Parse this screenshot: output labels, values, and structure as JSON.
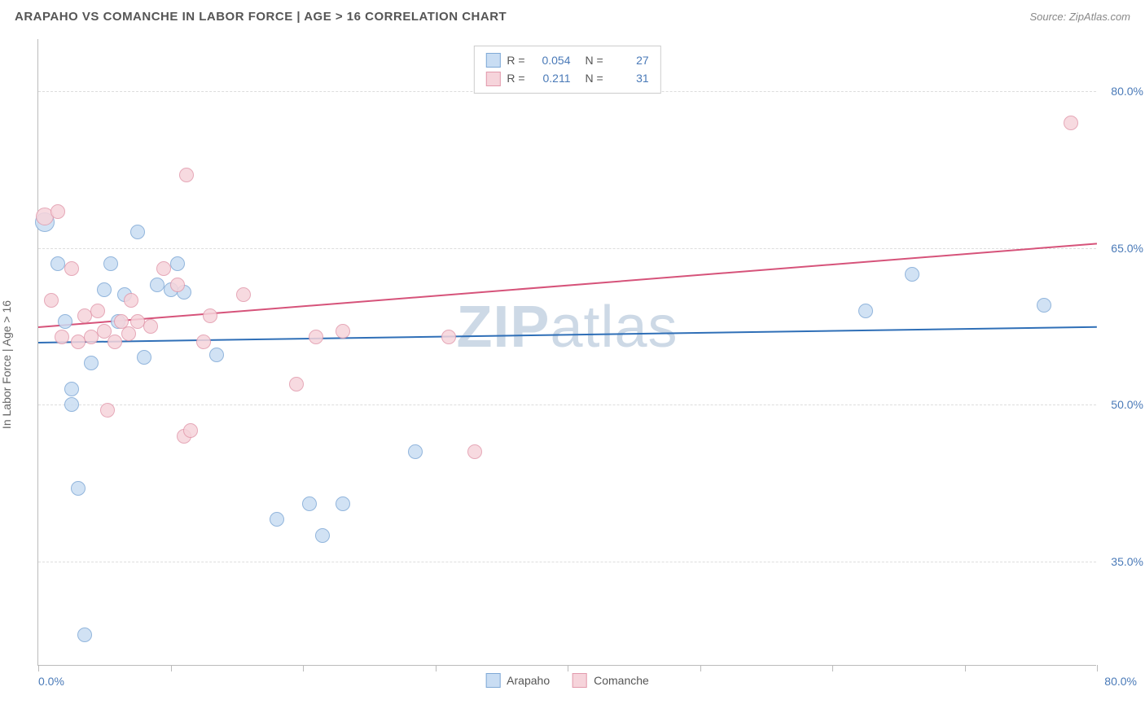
{
  "title": "ARAPAHO VS COMANCHE IN LABOR FORCE | AGE > 16 CORRELATION CHART",
  "source_label": "Source: ZipAtlas.com",
  "watermark": {
    "bold": "ZIP",
    "light": "atlas"
  },
  "chart": {
    "type": "scatter",
    "ylabel": "In Labor Force | Age > 16",
    "xlim": [
      0,
      80
    ],
    "ylim": [
      25,
      85
    ],
    "yticks": [
      35,
      50,
      65,
      80
    ],
    "ytick_labels": [
      "35.0%",
      "50.0%",
      "65.0%",
      "80.0%"
    ],
    "xticks": [
      0,
      10,
      20,
      30,
      40,
      50,
      60,
      70,
      80
    ],
    "xmin_label": "0.0%",
    "xmax_label": "80.0%",
    "background_color": "#ffffff",
    "grid_color": "#dddddd",
    "axis_color": "#bbbbbb",
    "tick_label_color": "#4a7ab8",
    "marker_radius": 9,
    "marker_border_width": 1,
    "series": [
      {
        "name": "Arapaho",
        "fill": "#c9ddf3",
        "stroke": "#7fa9d6",
        "trend_color": "#2f6fb7",
        "R": "0.054",
        "N": "27",
        "trend": {
          "x1": 0,
          "y1": 56.0,
          "x2": 80,
          "y2": 57.5
        },
        "points": [
          {
            "x": 0.5,
            "y": 67.5,
            "r": 12
          },
          {
            "x": 1.5,
            "y": 63.5
          },
          {
            "x": 2.0,
            "y": 58.0
          },
          {
            "x": 2.5,
            "y": 51.5
          },
          {
            "x": 2.5,
            "y": 50.0
          },
          {
            "x": 3.0,
            "y": 42.0
          },
          {
            "x": 3.5,
            "y": 28.0
          },
          {
            "x": 4.0,
            "y": 54.0
          },
          {
            "x": 5.0,
            "y": 61.0
          },
          {
            "x": 5.5,
            "y": 63.5
          },
          {
            "x": 6.0,
            "y": 58.0
          },
          {
            "x": 6.5,
            "y": 60.5
          },
          {
            "x": 7.5,
            "y": 66.5
          },
          {
            "x": 8.0,
            "y": 54.5
          },
          {
            "x": 9.0,
            "y": 61.5
          },
          {
            "x": 10.0,
            "y": 61.0
          },
          {
            "x": 10.5,
            "y": 63.5
          },
          {
            "x": 11.0,
            "y": 60.8
          },
          {
            "x": 13.5,
            "y": 54.8
          },
          {
            "x": 18.0,
            "y": 39.0
          },
          {
            "x": 20.5,
            "y": 40.5
          },
          {
            "x": 21.5,
            "y": 37.5
          },
          {
            "x": 23.0,
            "y": 40.5
          },
          {
            "x": 28.5,
            "y": 45.5
          },
          {
            "x": 62.5,
            "y": 59.0
          },
          {
            "x": 66.0,
            "y": 62.5
          },
          {
            "x": 76.0,
            "y": 59.5
          }
        ]
      },
      {
        "name": "Comanche",
        "fill": "#f6d4db",
        "stroke": "#e29aac",
        "trend_color": "#d6537a",
        "R": "0.211",
        "N": "31",
        "trend": {
          "x1": 0,
          "y1": 57.5,
          "x2": 80,
          "y2": 65.5
        },
        "points": [
          {
            "x": 0.5,
            "y": 68.0,
            "r": 11
          },
          {
            "x": 1.0,
            "y": 60.0
          },
          {
            "x": 1.5,
            "y": 68.5
          },
          {
            "x": 1.8,
            "y": 56.5
          },
          {
            "x": 2.5,
            "y": 63.0
          },
          {
            "x": 3.0,
            "y": 56.0
          },
          {
            "x": 3.5,
            "y": 58.5
          },
          {
            "x": 4.0,
            "y": 56.5
          },
          {
            "x": 4.5,
            "y": 59.0
          },
          {
            "x": 5.0,
            "y": 57.0
          },
          {
            "x": 5.2,
            "y": 49.5
          },
          {
            "x": 5.8,
            "y": 56.0
          },
          {
            "x": 6.3,
            "y": 58.0
          },
          {
            "x": 6.8,
            "y": 56.8
          },
          {
            "x": 7.0,
            "y": 60.0
          },
          {
            "x": 7.5,
            "y": 58.0
          },
          {
            "x": 8.5,
            "y": 57.5
          },
          {
            "x": 9.5,
            "y": 63.0
          },
          {
            "x": 10.5,
            "y": 61.5
          },
          {
            "x": 11.0,
            "y": 47.0
          },
          {
            "x": 11.2,
            "y": 72.0
          },
          {
            "x": 11.5,
            "y": 47.5
          },
          {
            "x": 12.5,
            "y": 56.0
          },
          {
            "x": 13.0,
            "y": 58.5
          },
          {
            "x": 15.5,
            "y": 60.5
          },
          {
            "x": 19.5,
            "y": 52.0
          },
          {
            "x": 21.0,
            "y": 56.5
          },
          {
            "x": 23.0,
            "y": 57.0
          },
          {
            "x": 31.0,
            "y": 56.5
          },
          {
            "x": 33.0,
            "y": 45.5
          },
          {
            "x": 78.0,
            "y": 77.0
          }
        ]
      }
    ]
  },
  "legend_top": {
    "r_label": "R =",
    "n_label": "N ="
  },
  "legend_bottom": [
    {
      "label": "Arapaho",
      "fill": "#c9ddf3",
      "stroke": "#7fa9d6"
    },
    {
      "label": "Comanche",
      "fill": "#f6d4db",
      "stroke": "#e29aac"
    }
  ]
}
